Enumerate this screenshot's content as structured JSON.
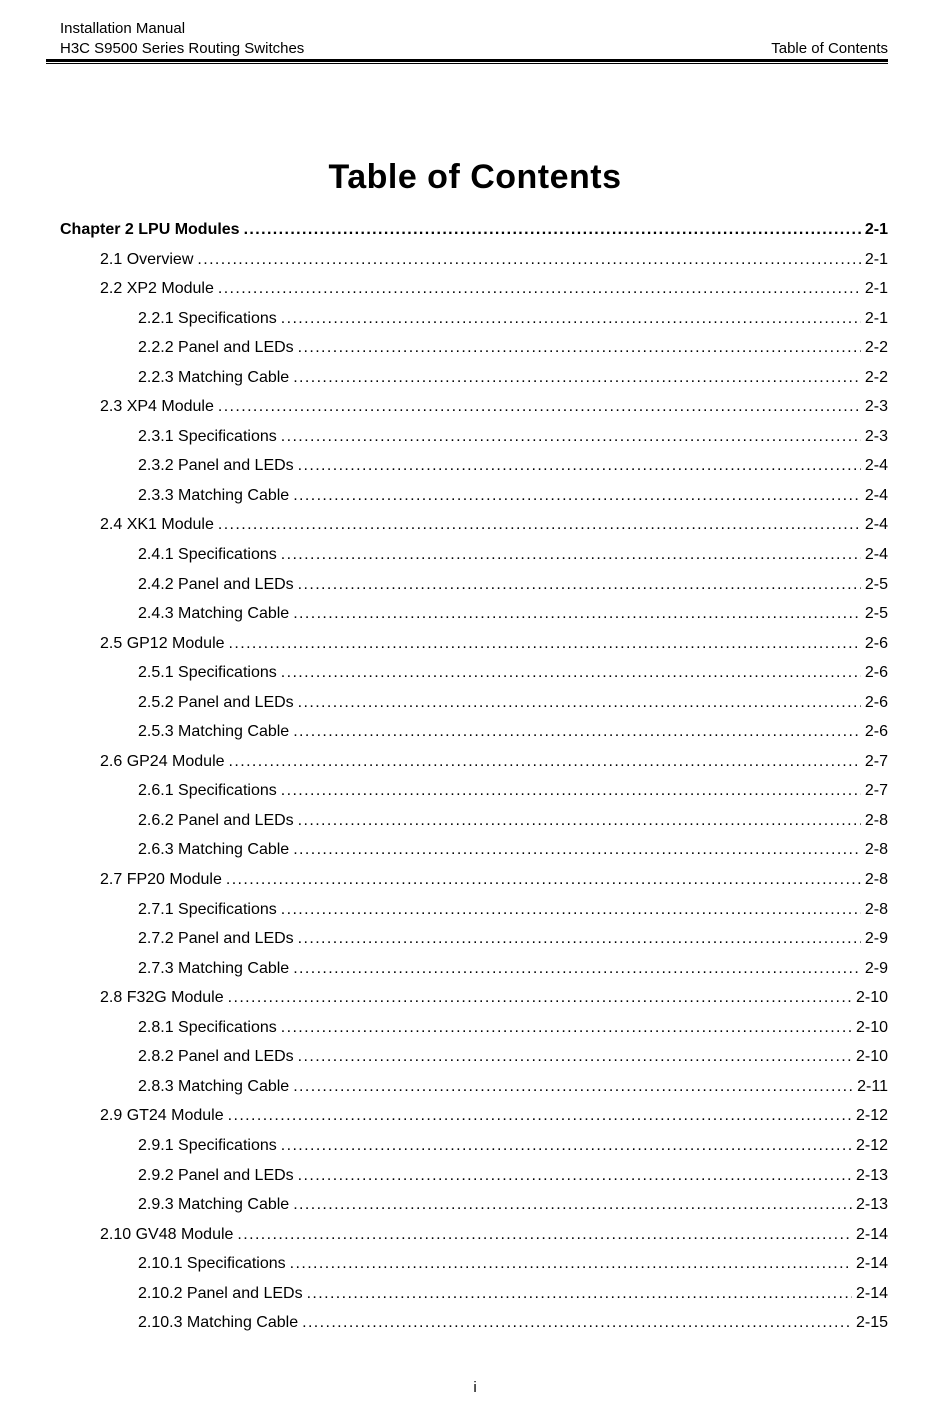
{
  "header": {
    "line1": "Installation Manual",
    "line2": "H3C S9500 Series Routing Switches",
    "right": "Table of Contents"
  },
  "title": "Table of Contents",
  "footer": {
    "page_number": "i"
  },
  "toc": {
    "entries": [
      {
        "level": 0,
        "label": "Chapter 2 LPU Modules",
        "page": "2-1"
      },
      {
        "level": 1,
        "label": "2.1 Overview",
        "page": "2-1"
      },
      {
        "level": 1,
        "label": "2.2 XP2 Module",
        "page": "2-1"
      },
      {
        "level": 2,
        "label": "2.2.1 Specifications",
        "page": "2-1"
      },
      {
        "level": 2,
        "label": "2.2.2 Panel and LEDs",
        "page": "2-2"
      },
      {
        "level": 2,
        "label": "2.2.3 Matching Cable",
        "page": "2-2"
      },
      {
        "level": 1,
        "label": "2.3 XP4 Module",
        "page": "2-3"
      },
      {
        "level": 2,
        "label": "2.3.1 Specifications",
        "page": "2-3"
      },
      {
        "level": 2,
        "label": "2.3.2 Panel and LEDs",
        "page": "2-4"
      },
      {
        "level": 2,
        "label": "2.3.3 Matching Cable",
        "page": "2-4"
      },
      {
        "level": 1,
        "label": "2.4 XK1 Module",
        "page": "2-4"
      },
      {
        "level": 2,
        "label": "2.4.1 Specifications",
        "page": "2-4"
      },
      {
        "level": 2,
        "label": "2.4.2 Panel and LEDs",
        "page": "2-5"
      },
      {
        "level": 2,
        "label": "2.4.3 Matching Cable",
        "page": "2-5"
      },
      {
        "level": 1,
        "label": "2.5 GP12 Module",
        "page": "2-6"
      },
      {
        "level": 2,
        "label": "2.5.1 Specifications",
        "page": "2-6"
      },
      {
        "level": 2,
        "label": "2.5.2 Panel and LEDs",
        "page": "2-6"
      },
      {
        "level": 2,
        "label": "2.5.3 Matching Cable",
        "page": "2-6"
      },
      {
        "level": 1,
        "label": "2.6 GP24 Module",
        "page": "2-7"
      },
      {
        "level": 2,
        "label": "2.6.1 Specifications",
        "page": "2-7"
      },
      {
        "level": 2,
        "label": "2.6.2 Panel and LEDs",
        "page": "2-8"
      },
      {
        "level": 2,
        "label": "2.6.3 Matching Cable",
        "page": "2-8"
      },
      {
        "level": 1,
        "label": "2.7 FP20 Module",
        "page": "2-8"
      },
      {
        "level": 2,
        "label": "2.7.1 Specifications",
        "page": "2-8"
      },
      {
        "level": 2,
        "label": "2.7.2 Panel and LEDs",
        "page": "2-9"
      },
      {
        "level": 2,
        "label": "2.7.3 Matching Cable",
        "page": "2-9"
      },
      {
        "level": 1,
        "label": "2.8 F32G Module",
        "page": "2-10"
      },
      {
        "level": 2,
        "label": "2.8.1 Specifications",
        "page": "2-10"
      },
      {
        "level": 2,
        "label": "2.8.2 Panel and LEDs",
        "page": "2-10"
      },
      {
        "level": 2,
        "label": "2.8.3 Matching Cable",
        "page": "2-11"
      },
      {
        "level": 1,
        "label": "2.9 GT24 Module",
        "page": "2-12"
      },
      {
        "level": 2,
        "label": "2.9.1 Specifications",
        "page": "2-12"
      },
      {
        "level": 2,
        "label": "2.9.2 Panel and LEDs",
        "page": "2-13"
      },
      {
        "level": 2,
        "label": "2.9.3 Matching Cable",
        "page": "2-13"
      },
      {
        "level": 1,
        "label": "2.10 GV48 Module",
        "page": "2-14"
      },
      {
        "level": 2,
        "label": "2.10.1 Specifications",
        "page": "2-14"
      },
      {
        "level": 2,
        "label": "2.10.2 Panel and LEDs",
        "page": "2-14"
      },
      {
        "level": 2,
        "label": "2.10.3 Matching Cable",
        "page": "2-15"
      }
    ]
  }
}
